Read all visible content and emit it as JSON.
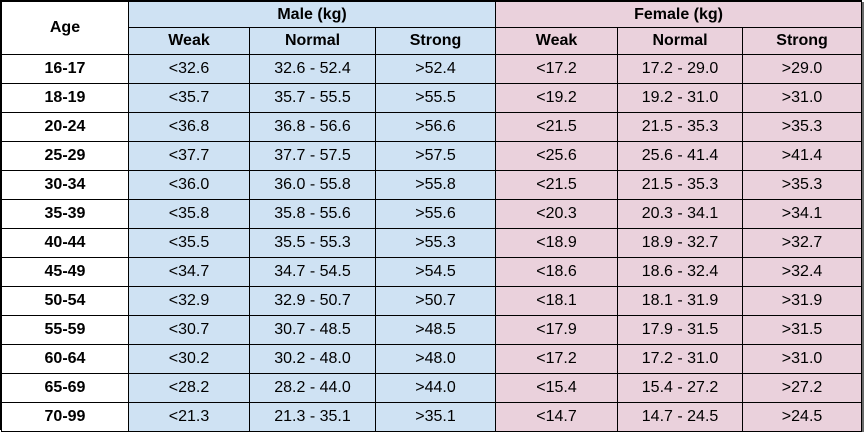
{
  "header": {
    "age_label": "Age",
    "male_group": "Male (kg)",
    "female_group": "Female (kg)",
    "male_columns": [
      "Weak",
      "Normal",
      "Strong"
    ],
    "female_columns": [
      "Weak",
      "Normal",
      "Strong"
    ]
  },
  "colors": {
    "male_fill": "#cfe2f3",
    "female_fill": "#ead1dc",
    "border": "#000000"
  },
  "rows": [
    {
      "age": "16-17",
      "male": [
        "<32.6",
        "32.6 - 52.4",
        ">52.4"
      ],
      "female": [
        "<17.2",
        "17.2 - 29.0",
        ">29.0"
      ]
    },
    {
      "age": "18-19",
      "male": [
        "<35.7",
        "35.7 - 55.5",
        ">55.5"
      ],
      "female": [
        "<19.2",
        "19.2 - 31.0",
        ">31.0"
      ]
    },
    {
      "age": "20-24",
      "male": [
        "<36.8",
        "36.8 - 56.6",
        ">56.6"
      ],
      "female": [
        "<21.5",
        "21.5 - 35.3",
        ">35.3"
      ]
    },
    {
      "age": "25-29",
      "male": [
        "<37.7",
        "37.7 - 57.5",
        ">57.5"
      ],
      "female": [
        "<25.6",
        "25.6 - 41.4",
        ">41.4"
      ]
    },
    {
      "age": "30-34",
      "male": [
        "<36.0",
        "36.0 - 55.8",
        ">55.8"
      ],
      "female": [
        "<21.5",
        "21.5 - 35.3",
        ">35.3"
      ]
    },
    {
      "age": "35-39",
      "male": [
        "<35.8",
        "35.8 - 55.6",
        ">55.6"
      ],
      "female": [
        "<20.3",
        "20.3 - 34.1",
        ">34.1"
      ]
    },
    {
      "age": "40-44",
      "male": [
        "<35.5",
        "35.5 - 55.3",
        ">55.3"
      ],
      "female": [
        "<18.9",
        "18.9 - 32.7",
        ">32.7"
      ]
    },
    {
      "age": "45-49",
      "male": [
        "<34.7",
        "34.7 - 54.5",
        ">54.5"
      ],
      "female": [
        "<18.6",
        "18.6 - 32.4",
        ">32.4"
      ]
    },
    {
      "age": "50-54",
      "male": [
        "<32.9",
        "32.9 - 50.7",
        ">50.7"
      ],
      "female": [
        "<18.1",
        "18.1 - 31.9",
        ">31.9"
      ]
    },
    {
      "age": "55-59",
      "male": [
        "<30.7",
        "30.7 - 48.5",
        ">48.5"
      ],
      "female": [
        "<17.9",
        "17.9 - 31.5",
        ">31.5"
      ]
    },
    {
      "age": "60-64",
      "male": [
        "<30.2",
        "30.2 - 48.0",
        ">48.0"
      ],
      "female": [
        "<17.2",
        "17.2 - 31.0",
        ">31.0"
      ]
    },
    {
      "age": "65-69",
      "male": [
        "<28.2",
        "28.2 - 44.0",
        ">44.0"
      ],
      "female": [
        "<15.4",
        "15.4 - 27.2",
        ">27.2"
      ]
    },
    {
      "age": "70-99",
      "male": [
        "<21.3",
        "21.3 - 35.1",
        ">35.1"
      ],
      "female": [
        "<14.7",
        "14.7 - 24.5",
        ">24.5"
      ]
    }
  ]
}
